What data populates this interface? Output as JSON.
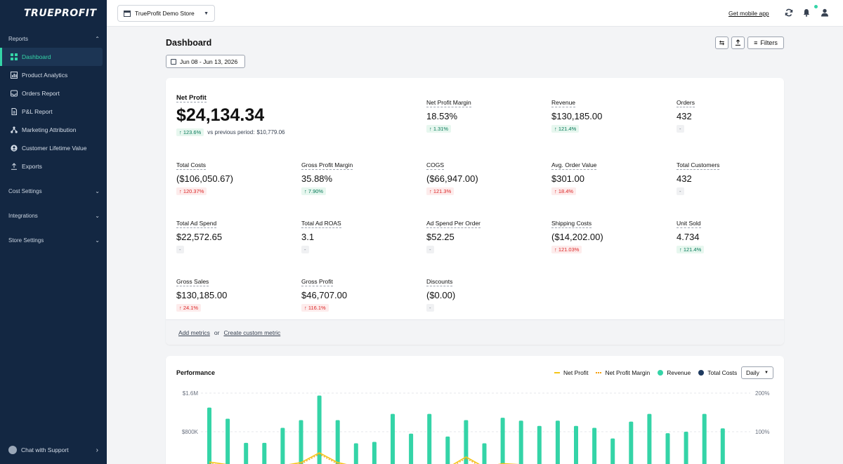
{
  "brand": {
    "logo": "TRUEPROFIT"
  },
  "sidebar": {
    "reports_label": "Reports",
    "items": [
      {
        "label": "Dashboard",
        "icon": "grid-icon",
        "active": true
      },
      {
        "label": "Product Analytics",
        "icon": "chart-icon"
      },
      {
        "label": "Orders Report",
        "icon": "inbox-icon"
      },
      {
        "label": "P&L Report",
        "icon": "document-icon"
      },
      {
        "label": "Marketing Attribution",
        "icon": "network-icon"
      },
      {
        "label": "Customer Lifetime Value",
        "icon": "user-circle-icon"
      },
      {
        "label": "Exports",
        "icon": "upload-icon"
      }
    ],
    "cost_settings": "Cost Settings",
    "integrations": "Integrations",
    "store_settings": "Store Settings",
    "support": "Chat with Support"
  },
  "topbar": {
    "store": "TrueProfit Demo Store",
    "mobile_link": "Get mobile app"
  },
  "header": {
    "title": "Dashboard",
    "date_range": "Jun 08 - Jun 13, 2026",
    "filters": "Filters"
  },
  "net_profit": {
    "label": "Net Profit",
    "value": "$24,134.34",
    "change": "↑ 123.6%",
    "prev": "vs previous period: ",
    "prev_value": "$10,779.06"
  },
  "metrics": [
    {
      "label": "Net Profit Margin",
      "value": "18.53%",
      "change": "↑ 1.31%",
      "trend": "up"
    },
    {
      "label": "Revenue",
      "value": "$130,185.00",
      "change": "↑ 121.4%",
      "trend": "up"
    },
    {
      "label": "Orders",
      "value": "432",
      "change": "-",
      "trend": "neutral"
    },
    {
      "label": "Total Costs",
      "value": "($106,050.67)",
      "change": "↑ 120.37%",
      "trend": "down"
    },
    {
      "label": "Gross Profit Margin",
      "value": "35.88%",
      "change": "↑ 7.90%",
      "trend": "up"
    },
    {
      "label": "COGS",
      "value": "($66,947.00)",
      "change": "↑ 121.3%",
      "trend": "down"
    },
    {
      "label": "Avg. Order Value",
      "value": "$301.00",
      "change": "↑ 18.4%",
      "trend": "down"
    },
    {
      "label": "Total Customers",
      "value": "432",
      "change": "-",
      "trend": "neutral"
    },
    {
      "label": "Total Ad Spend",
      "value": "$22,572.65",
      "change": "-",
      "trend": "neutral"
    },
    {
      "label": "Total Ad ROAS",
      "value": "3.1",
      "change": "-",
      "trend": "neutral"
    },
    {
      "label": "Ad Spend Per Order",
      "value": "$52.25",
      "change": "-",
      "trend": "neutral"
    },
    {
      "label": "Shipping Costs",
      "value": "($14,202.00)",
      "change": "↑ 121.03%",
      "trend": "down"
    },
    {
      "label": "Unit Sold",
      "value": "4.734",
      "change": "↑ 121.4%",
      "trend": "up"
    },
    {
      "label": "Gross Sales",
      "value": "$130,185.00",
      "change": "↑ 24.1%",
      "trend": "down"
    },
    {
      "label": "Gross Profit",
      "value": "$46,707.00",
      "change": "↑ 116.1%",
      "trend": "down"
    },
    {
      "label": "Discounts",
      "value": "($0.00)",
      "change": "-",
      "trend": "neutral"
    }
  ],
  "footer": {
    "add_metrics": "Add metrics",
    "or": "or",
    "custom_metric": "Create custom metric"
  },
  "performance": {
    "title": "Performance",
    "legend": [
      {
        "name": "Net Profit",
        "color": "#f5c518",
        "style": "line"
      },
      {
        "name": "Net Profit Margin",
        "color": "#f59e0b",
        "style": "dashed"
      },
      {
        "name": "Revenue",
        "color": "#34d4a7",
        "style": "dot"
      },
      {
        "name": "Total Costs",
        "color": "#1e3a5f",
        "style": "dot"
      }
    ],
    "interval": "Daily"
  },
  "chart_data": {
    "type": "bar",
    "title": "",
    "y_left_ticks": [
      "$1.6M",
      "$800K"
    ],
    "y_right_ticks": [
      "200%",
      "100%"
    ],
    "ylim": [
      0,
      1600000
    ],
    "revenue_values": [
      1300000,
      1070000,
      570000,
      570000,
      880000,
      1040000,
      1550000,
      1040000,
      560000,
      590000,
      1170000,
      760000,
      1170000,
      700000,
      1040000,
      560000,
      1090000,
      1030000,
      920000,
      1030000,
      920000,
      880000,
      660000,
      1010000,
      1170000,
      770000,
      800000,
      1170000,
      870000
    ],
    "net_profit_values": [
      120000,
      70000,
      20000,
      20000,
      50000,
      110000,
      300000,
      110000,
      30000,
      30000,
      60000,
      20000,
      60000,
      10000,
      220000,
      20000,
      90000,
      70000,
      70000,
      70000,
      70000,
      60000,
      30000,
      60000,
      60000,
      30000,
      40000,
      60000,
      40000
    ]
  }
}
